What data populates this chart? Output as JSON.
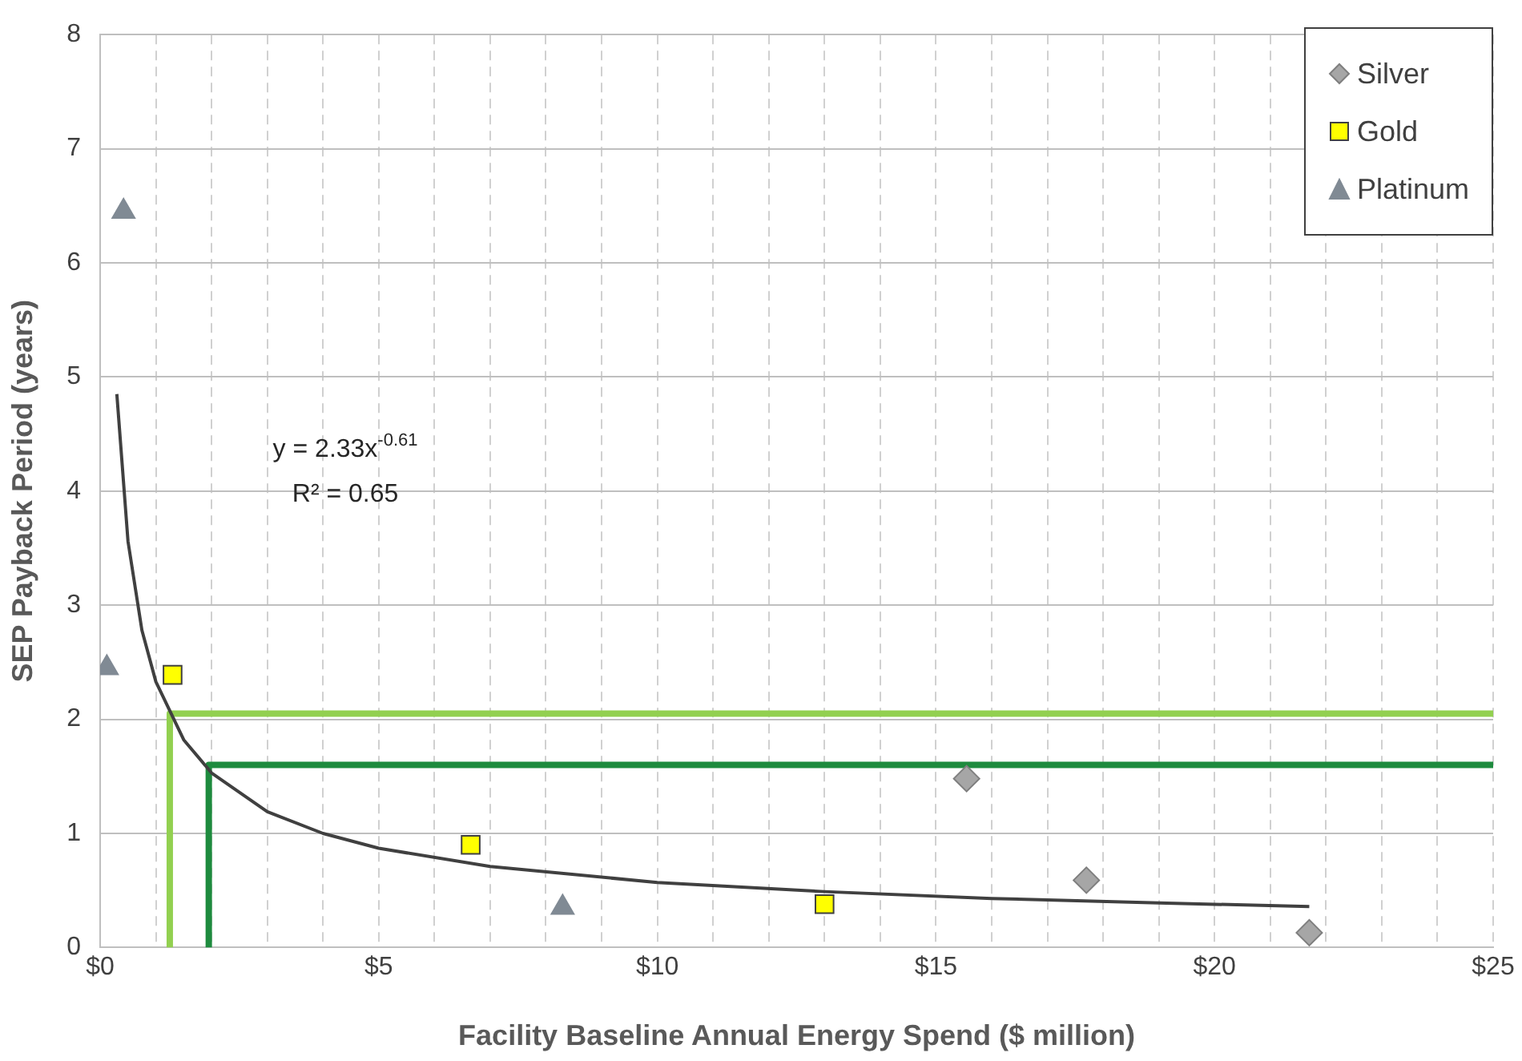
{
  "chart_data": {
    "type": "scatter",
    "xlabel": "Facility Baseline Annual Energy Spend ($ million)",
    "ylabel": "SEP Payback Period (years)",
    "xlim": [
      0,
      25
    ],
    "xticks": [
      {
        "value": 0,
        "label": "$0"
      },
      {
        "value": 1,
        "label": null
      },
      {
        "value": 2,
        "label": null
      },
      {
        "value": 3,
        "label": null
      },
      {
        "value": 4,
        "label": null
      },
      {
        "value": 5,
        "label": "$5"
      },
      {
        "value": 6,
        "label": null
      },
      {
        "value": 7,
        "label": null
      },
      {
        "value": 8,
        "label": null
      },
      {
        "value": 9,
        "label": null
      },
      {
        "value": 10,
        "label": "$10"
      },
      {
        "value": 11,
        "label": null
      },
      {
        "value": 12,
        "label": null
      },
      {
        "value": 13,
        "label": null
      },
      {
        "value": 14,
        "label": null
      },
      {
        "value": 15,
        "label": "$15"
      },
      {
        "value": 16,
        "label": null
      },
      {
        "value": 17,
        "label": null
      },
      {
        "value": 18,
        "label": null
      },
      {
        "value": 19,
        "label": null
      },
      {
        "value": 20,
        "label": "$20"
      },
      {
        "value": 21,
        "label": null
      },
      {
        "value": 22,
        "label": null
      },
      {
        "value": 23,
        "label": null
      },
      {
        "value": 24,
        "label": null
      },
      {
        "value": 25,
        "label": "$25"
      }
    ],
    "ylim": [
      0,
      8
    ],
    "yticks": [
      0,
      1,
      2,
      3,
      4,
      5,
      6,
      7,
      8
    ],
    "grid": true,
    "legend": "top right",
    "annotations": [
      "y = 2.33x$^{-0.61}$",
      "R² = 0.65"
    ],
    "series": [
      {
        "name": "Silver",
        "type": "scatter",
        "marker": "diamond",
        "color": "#a6a6a6",
        "x": [
          15.55,
          17.7,
          21.7
        ],
        "values": [
          1.48,
          0.59,
          0.13
        ]
      },
      {
        "name": "Gold",
        "type": "scatter",
        "marker": "square",
        "color": "#ffff00",
        "x": [
          1.3,
          6.65,
          13.0
        ],
        "values": [
          2.39,
          0.9,
          0.38
        ]
      },
      {
        "name": "Platinum",
        "type": "scatter",
        "marker": "triangle",
        "color": "#808a94",
        "x": [
          0.42,
          0.12,
          8.3
        ],
        "values": [
          6.45,
          2.45,
          0.35
        ]
      },
      {
        "type": "line",
        "color": "#404040",
        "x": [
          0.3,
          0.5,
          0.75,
          1,
          1.5,
          2,
          3,
          4,
          5,
          7,
          10,
          13,
          16,
          19,
          21.7
        ],
        "values": [
          4.85,
          3.56,
          2.78,
          2.33,
          1.82,
          1.53,
          1.19,
          1.0,
          0.87,
          0.71,
          0.57,
          0.49,
          0.43,
          0.39,
          0.36
        ]
      },
      {
        "type": "line",
        "color": "#92d050",
        "x": [
          1.25,
          1.25,
          25
        ],
        "values": [
          0,
          2.05,
          2.05
        ]
      },
      {
        "type": "line",
        "color": "#1e8b3e",
        "x": [
          1.95,
          1.95,
          25
        ],
        "values": [
          0,
          1.6,
          1.6
        ]
      }
    ]
  }
}
